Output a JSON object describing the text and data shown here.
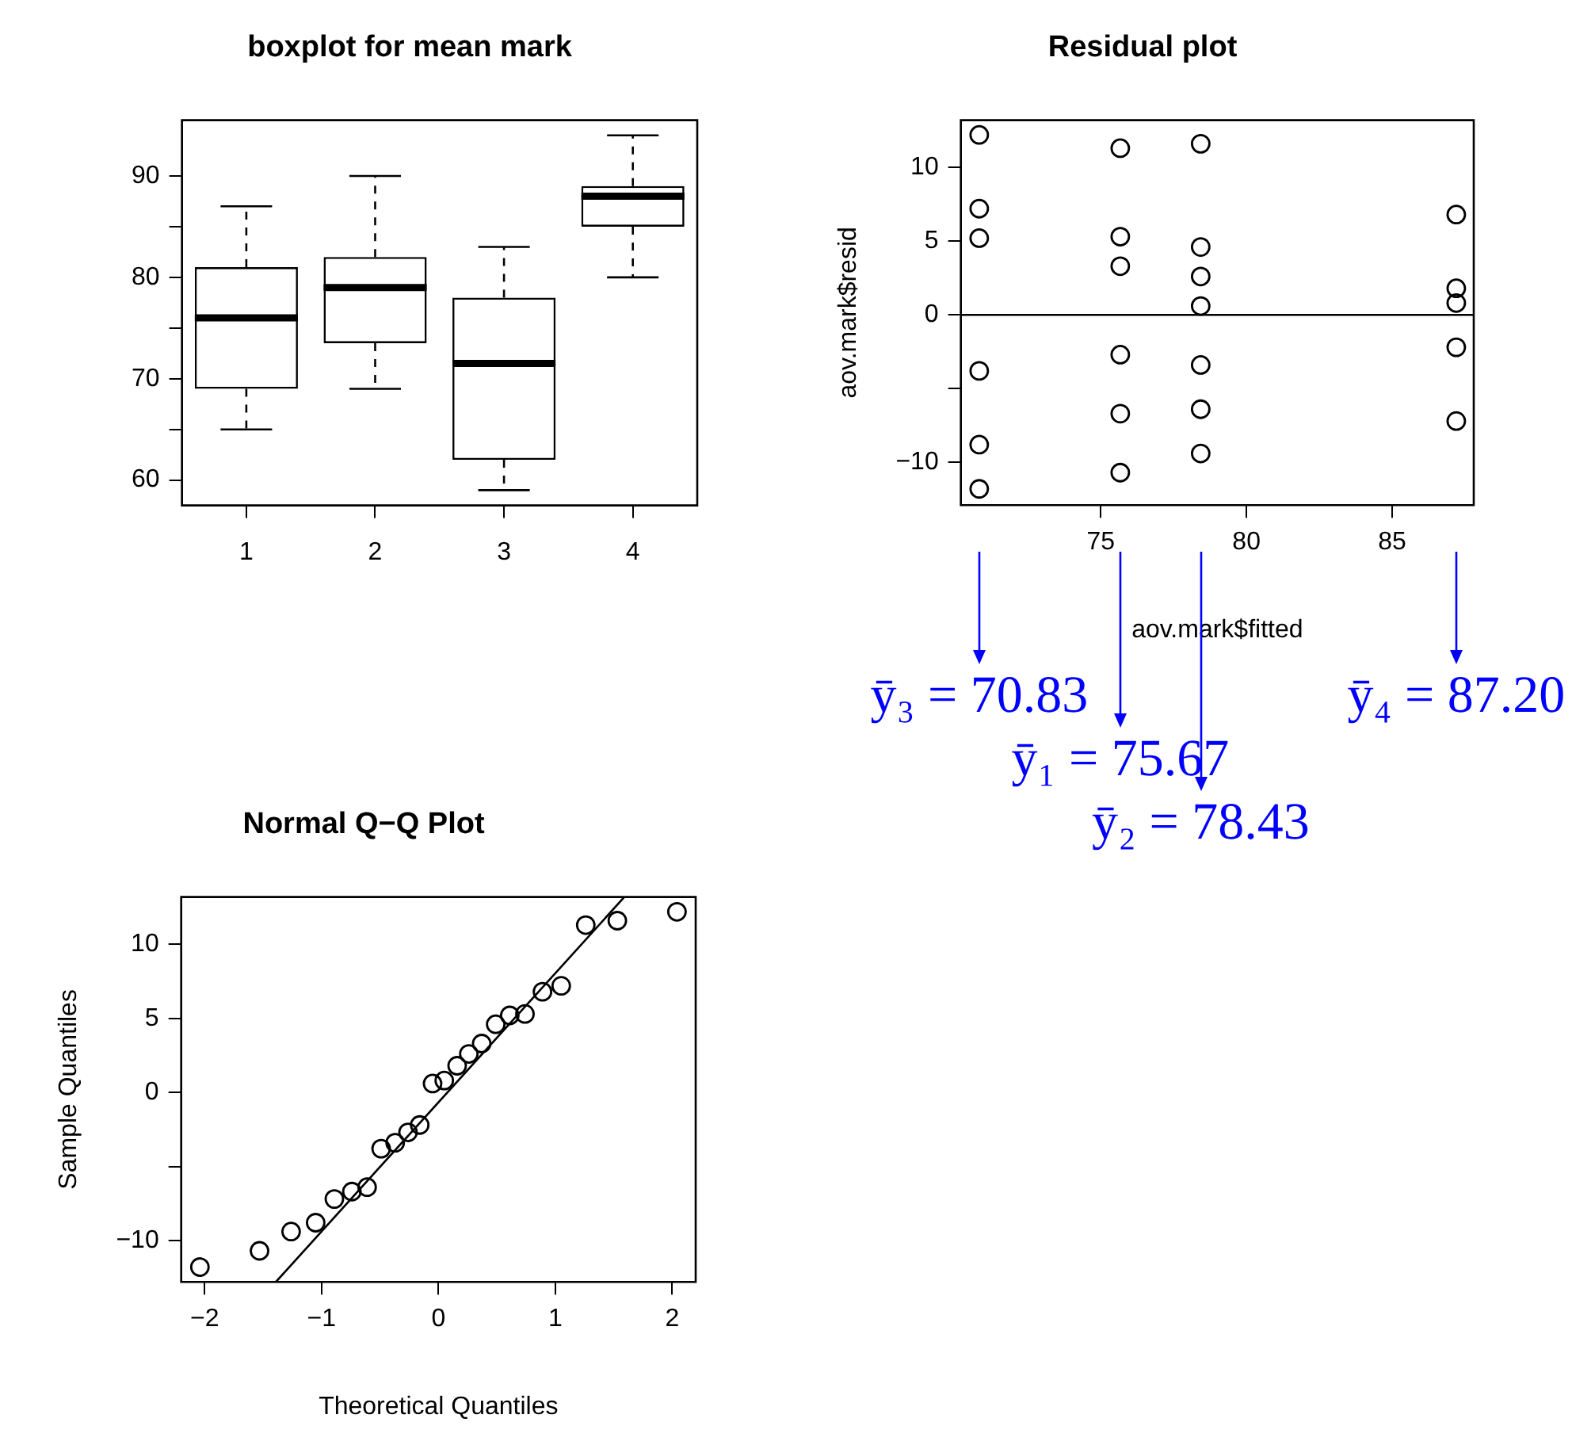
{
  "chart_data": [
    {
      "type": "box",
      "title": "boxplot for mean mark",
      "categories": [
        "1",
        "2",
        "3",
        "4"
      ],
      "boxes": [
        {
          "low": 65,
          "q1": 69,
          "median": 76,
          "q3": 81,
          "high": 87
        },
        {
          "low": 69,
          "q1": 73.5,
          "median": 79,
          "q3": 82,
          "high": 90
        },
        {
          "low": 59,
          "q1": 62,
          "median": 71.5,
          "q3": 78,
          "high": 83
        },
        {
          "low": 80,
          "q1": 85,
          "median": 88,
          "q3": 89,
          "high": 94
        }
      ],
      "ylim": [
        57.5,
        95.5
      ],
      "yticks": [
        60,
        {
          "value": 65,
          "label": null
        },
        70,
        {
          "value": 75,
          "label": null
        },
        80,
        {
          "value": 85,
          "label": null
        },
        90
      ],
      "grid": false
    },
    {
      "type": "scatter",
      "title": "Residual plot",
      "xlabel": "aov.mark$fitted",
      "ylabel": "aov.mark$resid",
      "x": [
        70.83,
        70.83,
        70.83,
        70.83,
        70.83,
        70.83,
        75.67,
        75.67,
        75.67,
        75.67,
        75.67,
        75.67,
        78.43,
        78.43,
        78.43,
        78.43,
        78.43,
        78.43,
        78.43,
        87.2,
        87.2,
        87.2,
        87.2,
        87.2
      ],
      "values": [
        12.2,
        7.2,
        5.2,
        -3.8,
        -8.8,
        -11.8,
        11.3,
        5.3,
        3.3,
        -2.7,
        -6.7,
        -10.7,
        11.6,
        4.6,
        2.6,
        0.6,
        -3.4,
        -6.4,
        -9.4,
        6.8,
        1.8,
        0.8,
        -2.2,
        -7.2
      ],
      "color": "#000000",
      "marker": "circle",
      "xlim": [
        70.2,
        87.8
      ],
      "xticks": [
        75,
        80,
        85
      ],
      "ylim": [
        -12.9,
        13.2
      ],
      "yticks": [
        {
          "value": -10,
          "label": "−10"
        },
        {
          "value": -5,
          "label": null
        },
        0,
        5,
        10
      ],
      "ref_lines": [
        {
          "axis": "y",
          "value": 0,
          "color": "#000000"
        }
      ],
      "annotations": [
        "ȳ₃ = 70.83",
        "ȳ₁ = 75.67",
        "ȳ₂ = 78.43",
        "ȳ₄ = 87.20"
      ],
      "grid": false
    },
    {
      "type": "scatter",
      "title": "Normal Q−Q Plot",
      "xlabel": "Theoretical Quantiles",
      "ylabel": "Sample Quantiles",
      "marker": "circle",
      "series": [
        {
          "color": "#000000",
          "x": [
            -2.04,
            -1.53,
            -1.26,
            -1.05,
            -0.89,
            -0.74,
            -0.61,
            -0.49,
            -0.37,
            -0.26,
            -0.16,
            -0.05,
            0.05,
            0.16,
            0.26,
            0.37,
            0.49,
            0.61,
            0.74,
            0.89,
            1.05,
            1.26,
            1.53,
            2.04
          ],
          "values": [
            -11.8,
            -10.7,
            -9.4,
            -8.8,
            -7.2,
            -6.7,
            -6.4,
            -3.8,
            -3.4,
            -2.7,
            -2.2,
            0.6,
            0.8,
            1.8,
            2.6,
            3.3,
            4.6,
            5.2,
            5.3,
            6.8,
            7.2,
            11.3,
            11.6,
            12.2
          ]
        },
        {
          "type": "line",
          "color": "#000000",
          "marker": "none",
          "x": [
            -1.39,
            1.59
          ],
          "values": [
            -12.8,
            13.2
          ]
        }
      ],
      "xlim": [
        -2.2,
        2.2
      ],
      "xticks": [
        {
          "value": -2,
          "label": "−2"
        },
        {
          "value": -1,
          "label": "−1"
        },
        0,
        1,
        2
      ],
      "ylim": [
        -12.8,
        13.2
      ],
      "yticks": [
        {
          "value": -10,
          "label": "−10"
        },
        {
          "value": -5,
          "label": null
        },
        0,
        5,
        10
      ],
      "grid": false
    }
  ]
}
